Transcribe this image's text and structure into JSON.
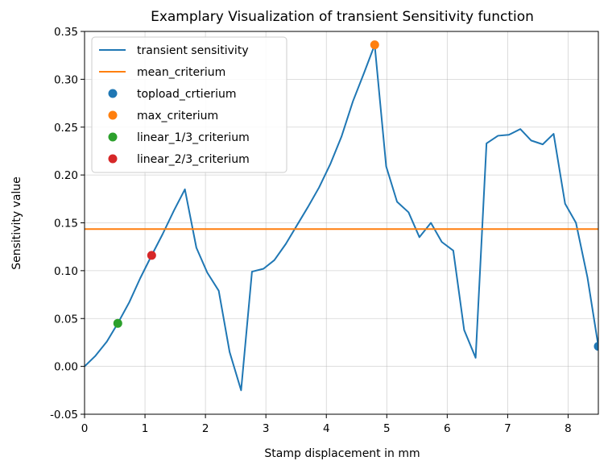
{
  "chart_data": {
    "type": "line",
    "title": "Examplary Visualization of transient Sensitivity function",
    "xlabel": "Stamp displacement in mm",
    "ylabel": "Sensitivity value",
    "xlim": [
      0,
      8.5
    ],
    "ylim": [
      -0.05,
      0.35
    ],
    "grid": true,
    "legend_position": "top-left",
    "x_ticks": [
      0,
      1,
      2,
      3,
      4,
      5,
      6,
      7,
      8
    ],
    "y_ticks": [
      -0.05,
      0.0,
      0.05,
      0.1,
      0.15,
      0.2,
      0.25,
      0.3,
      0.35
    ],
    "x_tick_labels": [
      "0",
      "1",
      "2",
      "3",
      "4",
      "5",
      "6",
      "7",
      "8"
    ],
    "y_tick_labels": [
      "-0.05",
      "0.00",
      "0.05",
      "0.10",
      "0.15",
      "0.20",
      "0.25",
      "0.30",
      "0.35"
    ],
    "series": [
      {
        "name": "transient sensitivity",
        "kind": "line",
        "color": "#1f77b4",
        "x": [
          0,
          0.18,
          0.37,
          0.55,
          0.74,
          0.92,
          1.11,
          1.29,
          1.48,
          1.66,
          1.85,
          2.03,
          2.22,
          2.4,
          2.59,
          2.77,
          2.96,
          3.14,
          3.33,
          3.51,
          3.7,
          3.88,
          4.07,
          4.25,
          4.44,
          4.62,
          4.8,
          4.99,
          5.17,
          5.36,
          5.54,
          5.73,
          5.91,
          6.1,
          6.28,
          6.47,
          6.65,
          6.84,
          7.02,
          7.21,
          7.39,
          7.58,
          7.76,
          7.95,
          8.13,
          8.32,
          8.5
        ],
        "y": [
          0.0,
          0.011,
          0.026,
          0.045,
          0.067,
          0.092,
          0.116,
          0.138,
          0.163,
          0.185,
          0.124,
          0.098,
          0.079,
          0.015,
          -0.025,
          0.099,
          0.102,
          0.111,
          0.128,
          0.147,
          0.167,
          0.187,
          0.212,
          0.24,
          0.277,
          0.306,
          0.336,
          0.209,
          0.172,
          0.161,
          0.135,
          0.15,
          0.13,
          0.121,
          0.038,
          0.009,
          0.233,
          0.241,
          0.242,
          0.248,
          0.236,
          0.232,
          0.243,
          0.17,
          0.15,
          0.093,
          0.021
        ]
      },
      {
        "name": "mean_criterium",
        "kind": "hline",
        "color": "#ff7f0e",
        "y": 0.1435
      },
      {
        "name": "topload_crtierium",
        "kind": "point",
        "color": "#1f77b4",
        "x": 8.5,
        "y": 0.021
      },
      {
        "name": "max_criterium",
        "kind": "point",
        "color": "#ff7f0e",
        "x": 4.8,
        "y": 0.336
      },
      {
        "name": "linear_1/3_criterium",
        "kind": "point",
        "color": "#2ca02c",
        "x": 0.55,
        "y": 0.045
      },
      {
        "name": "linear_2/3_criterium",
        "kind": "point",
        "color": "#d62728",
        "x": 1.11,
        "y": 0.116
      }
    ]
  }
}
